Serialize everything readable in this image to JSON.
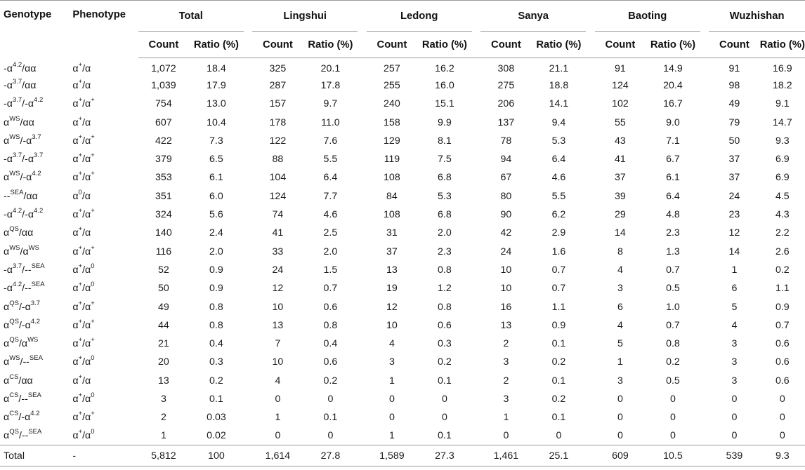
{
  "table": {
    "headers": {
      "genotype": "Genotype",
      "phenotype": "Phenotype",
      "groups": [
        "Total",
        "Lingshui",
        "Ledong",
        "Sanya",
        "Baoting",
        "Wuzhishan"
      ],
      "count": "Count",
      "ratio": "Ratio (%)"
    },
    "rows": [
      {
        "g": [
          [
            "-α",
            "4.2",
            "/αα"
          ]
        ],
        "p": [
          [
            "α",
            "+",
            "/α"
          ]
        ],
        "v": [
          "1,072",
          "18.4",
          "325",
          "20.1",
          "257",
          "16.2",
          "308",
          "21.1",
          "91",
          "14.9",
          "91",
          "16.9"
        ]
      },
      {
        "g": [
          [
            "-α",
            "3.7",
            "/αα"
          ]
        ],
        "p": [
          [
            "α",
            "+",
            "/α"
          ]
        ],
        "v": [
          "1,039",
          "17.9",
          "287",
          "17.8",
          "255",
          "16.0",
          "275",
          "18.8",
          "124",
          "20.4",
          "98",
          "18.2"
        ]
      },
      {
        "g": [
          [
            "-α",
            "3.7",
            "/-α"
          ],
          [
            "",
            "4.2",
            ""
          ]
        ],
        "p": [
          [
            "α",
            "+",
            "/α"
          ],
          [
            "",
            "+",
            ""
          ]
        ],
        "v": [
          "754",
          "13.0",
          "157",
          "9.7",
          "240",
          "15.1",
          "206",
          "14.1",
          "102",
          "16.7",
          "49",
          "9.1"
        ]
      },
      {
        "g": [
          [
            "α",
            "WS",
            "/αα"
          ]
        ],
        "p": [
          [
            "α",
            "+",
            "/α"
          ]
        ],
        "v": [
          "607",
          "10.4",
          "178",
          "11.0",
          "158",
          "9.9",
          "137",
          "9.4",
          "55",
          "9.0",
          "79",
          "14.7"
        ]
      },
      {
        "g": [
          [
            "α",
            "WS",
            "/-α"
          ],
          [
            "",
            "3.7",
            ""
          ]
        ],
        "p": [
          [
            "α",
            "+",
            "/α"
          ],
          [
            "",
            "+",
            ""
          ]
        ],
        "v": [
          "422",
          "7.3",
          "122",
          "7.6",
          "129",
          "8.1",
          "78",
          "5.3",
          "43",
          "7.1",
          "50",
          "9.3"
        ]
      },
      {
        "g": [
          [
            "-α",
            "3.7",
            "/-α"
          ],
          [
            "",
            "3.7",
            ""
          ]
        ],
        "p": [
          [
            "α",
            "+",
            "/α"
          ],
          [
            "",
            "+",
            ""
          ]
        ],
        "v": [
          "379",
          "6.5",
          "88",
          "5.5",
          "119",
          "7.5",
          "94",
          "6.4",
          "41",
          "6.7",
          "37",
          "6.9"
        ]
      },
      {
        "g": [
          [
            "α",
            "WS",
            "/-α"
          ],
          [
            "",
            "4.2",
            ""
          ]
        ],
        "p": [
          [
            "α",
            "+",
            "/α"
          ],
          [
            "",
            "+",
            ""
          ]
        ],
        "v": [
          "353",
          "6.1",
          "104",
          "6.4",
          "108",
          "6.8",
          "67",
          "4.6",
          "37",
          "6.1",
          "37",
          "6.9"
        ]
      },
      {
        "g": [
          [
            "--",
            "SEA",
            "/αα"
          ]
        ],
        "p": [
          [
            "α",
            "0",
            "/α"
          ]
        ],
        "v": [
          "351",
          "6.0",
          "124",
          "7.7",
          "84",
          "5.3",
          "80",
          "5.5",
          "39",
          "6.4",
          "24",
          "4.5"
        ]
      },
      {
        "g": [
          [
            "-α",
            "4.2",
            "/-α"
          ],
          [
            "",
            "4.2",
            ""
          ]
        ],
        "p": [
          [
            "α",
            "+",
            "/α"
          ],
          [
            "",
            "+",
            ""
          ]
        ],
        "v": [
          "324",
          "5.6",
          "74",
          "4.6",
          "108",
          "6.8",
          "90",
          "6.2",
          "29",
          "4.8",
          "23",
          "4.3"
        ]
      },
      {
        "g": [
          [
            "α",
            "QS",
            "/αα"
          ]
        ],
        "p": [
          [
            "α",
            "+",
            "/α"
          ]
        ],
        "v": [
          "140",
          "2.4",
          "41",
          "2.5",
          "31",
          "2.0",
          "42",
          "2.9",
          "14",
          "2.3",
          "12",
          "2.2"
        ]
      },
      {
        "g": [
          [
            "α",
            "WS",
            "/α"
          ],
          [
            "",
            "WS",
            ""
          ]
        ],
        "p": [
          [
            "α",
            "+",
            "/α"
          ],
          [
            "",
            "+",
            ""
          ]
        ],
        "v": [
          "116",
          "2.0",
          "33",
          "2.0",
          "37",
          "2.3",
          "24",
          "1.6",
          "8",
          "1.3",
          "14",
          "2.6"
        ]
      },
      {
        "g": [
          [
            "-α",
            "3.7",
            "/--"
          ],
          [
            "",
            "SEA",
            ""
          ]
        ],
        "p": [
          [
            "α",
            "+",
            "/α"
          ],
          [
            "",
            "0",
            ""
          ]
        ],
        "v": [
          "52",
          "0.9",
          "24",
          "1.5",
          "13",
          "0.8",
          "10",
          "0.7",
          "4",
          "0.7",
          "1",
          "0.2"
        ]
      },
      {
        "g": [
          [
            "-α",
            "4.2",
            "/--"
          ],
          [
            "",
            "SEA",
            ""
          ]
        ],
        "p": [
          [
            "α",
            "+",
            "/α"
          ],
          [
            "",
            "0",
            ""
          ]
        ],
        "v": [
          "50",
          "0.9",
          "12",
          "0.7",
          "19",
          "1.2",
          "10",
          "0.7",
          "3",
          "0.5",
          "6",
          "1.1"
        ]
      },
      {
        "g": [
          [
            "α",
            "QS",
            "/-α"
          ],
          [
            "",
            "3.7",
            ""
          ]
        ],
        "p": [
          [
            "α",
            "+",
            "/α"
          ],
          [
            "",
            "+",
            ""
          ]
        ],
        "v": [
          "49",
          "0.8",
          "10",
          "0.6",
          "12",
          "0.8",
          "16",
          "1.1",
          "6",
          "1.0",
          "5",
          "0.9"
        ]
      },
      {
        "g": [
          [
            "α",
            "QS",
            "/-α"
          ],
          [
            "",
            "4.2",
            ""
          ]
        ],
        "p": [
          [
            "α",
            "+",
            "/α"
          ],
          [
            "",
            "+",
            ""
          ]
        ],
        "v": [
          "44",
          "0.8",
          "13",
          "0.8",
          "10",
          "0.6",
          "13",
          "0.9",
          "4",
          "0.7",
          "4",
          "0.7"
        ]
      },
      {
        "g": [
          [
            "α",
            "QS",
            "/α"
          ],
          [
            "",
            "WS",
            ""
          ]
        ],
        "p": [
          [
            "α",
            "+",
            "/α"
          ],
          [
            "",
            "+",
            ""
          ]
        ],
        "v": [
          "21",
          "0.4",
          "7",
          "0.4",
          "4",
          "0.3",
          "2",
          "0.1",
          "5",
          "0.8",
          "3",
          "0.6"
        ]
      },
      {
        "g": [
          [
            "α",
            "WS",
            "/--"
          ],
          [
            "",
            "SEA",
            ""
          ]
        ],
        "p": [
          [
            "α",
            "+",
            "/α"
          ],
          [
            "",
            "0",
            ""
          ]
        ],
        "v": [
          "20",
          "0.3",
          "10",
          "0.6",
          "3",
          "0.2",
          "3",
          "0.2",
          "1",
          "0.2",
          "3",
          "0.6"
        ]
      },
      {
        "g": [
          [
            "α",
            "CS",
            "/αα"
          ]
        ],
        "p": [
          [
            "α",
            "+",
            "/α"
          ]
        ],
        "v": [
          "13",
          "0.2",
          "4",
          "0.2",
          "1",
          "0.1",
          "2",
          "0.1",
          "3",
          "0.5",
          "3",
          "0.6"
        ]
      },
      {
        "g": [
          [
            "α",
            "CS",
            "/--"
          ],
          [
            "",
            "SEA",
            ""
          ]
        ],
        "p": [
          [
            "α",
            "+",
            "/α"
          ],
          [
            "",
            "0",
            ""
          ]
        ],
        "v": [
          "3",
          "0.1",
          "0",
          "0",
          "0",
          "0",
          "3",
          "0.2",
          "0",
          "0",
          "0",
          "0"
        ]
      },
      {
        "g": [
          [
            "α",
            "CS",
            "/-α"
          ],
          [
            "",
            "4.2",
            ""
          ]
        ],
        "p": [
          [
            "α",
            "+",
            "/α"
          ],
          [
            "",
            "+",
            ""
          ]
        ],
        "v": [
          "2",
          "0.03",
          "1",
          "0.1",
          "0",
          "0",
          "1",
          "0.1",
          "0",
          "0",
          "0",
          "0"
        ]
      },
      {
        "g": [
          [
            "α",
            "QS",
            "/--"
          ],
          [
            "",
            "SEA",
            ""
          ]
        ],
        "p": [
          [
            "α",
            "+",
            "/α"
          ],
          [
            "",
            "0",
            ""
          ]
        ],
        "v": [
          "1",
          "0.02",
          "0",
          "0",
          "1",
          "0.1",
          "0",
          "0",
          "0",
          "0",
          "0",
          "0"
        ]
      }
    ],
    "total": {
      "label": "Total",
      "phenotype": "-",
      "v": [
        "5,812",
        "100",
        "1,614",
        "27.8",
        "1,589",
        "27.3",
        "1,461",
        "25.1",
        "609",
        "10.5",
        "539",
        "9.3"
      ]
    }
  }
}
